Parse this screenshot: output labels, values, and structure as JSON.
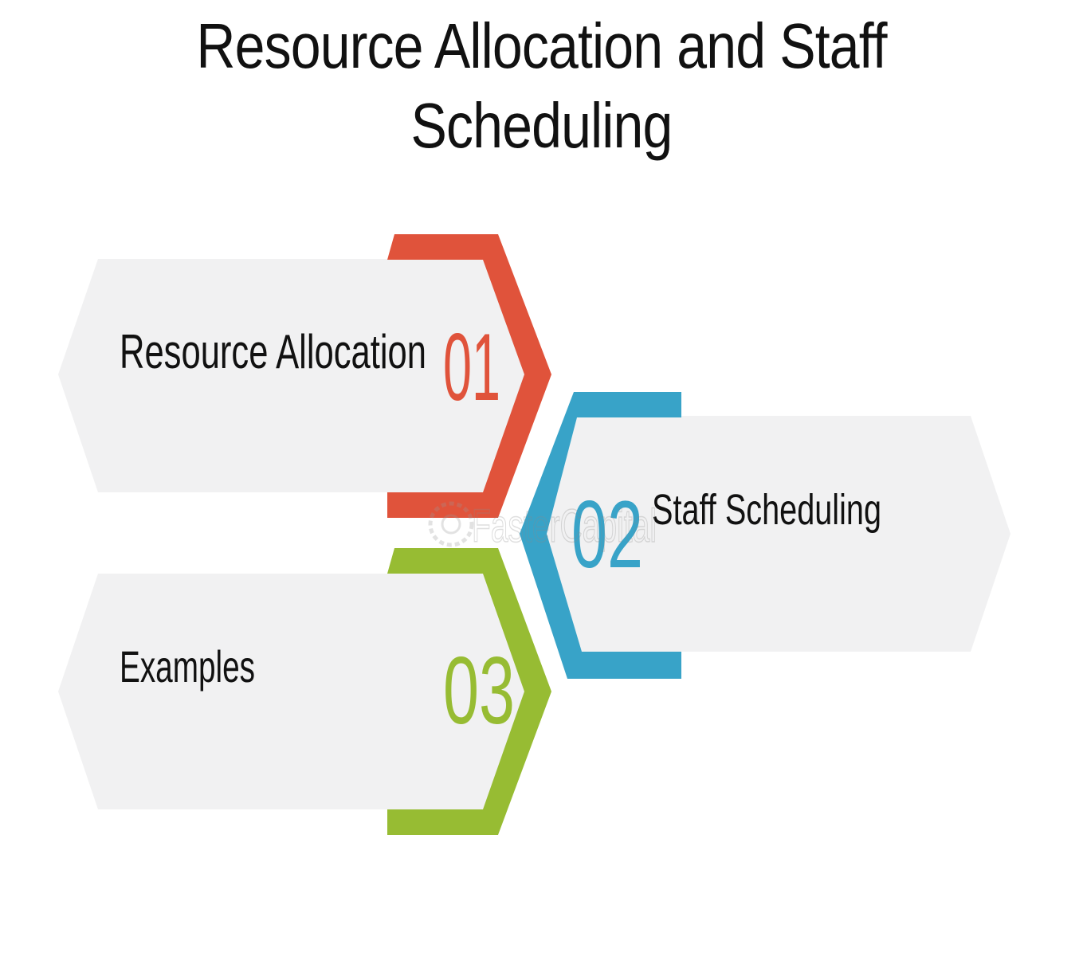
{
  "title": "Resource Allocation and Staff Scheduling",
  "watermark": "FasterCapital",
  "steps": [
    {
      "number": "01",
      "label": "Resource Allocation",
      "color": "#e0533b"
    },
    {
      "number": "02",
      "label": "Staff Scheduling",
      "color": "#38a3c8"
    },
    {
      "number": "03",
      "label": "Examples",
      "color": "#97bc33"
    }
  ],
  "colors": {
    "panel_fill": "#f1f1f2",
    "text": "#111111",
    "background": "#ffffff"
  }
}
